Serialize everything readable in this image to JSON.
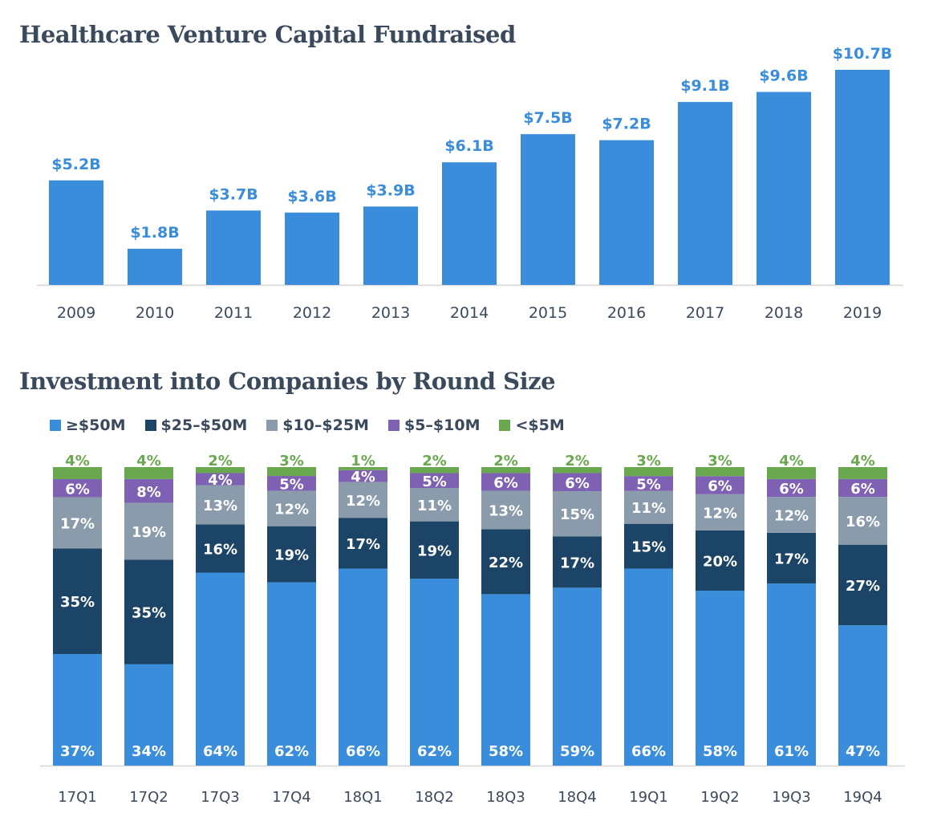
{
  "charts": [
    {
      "title": "Healthcare Venture Capital Fundraised",
      "chart_data": {
        "type": "bar",
        "categories": [
          "2009",
          "2010",
          "2011",
          "2012",
          "2013",
          "2014",
          "2015",
          "2016",
          "2017",
          "2018",
          "2019"
        ],
        "values": [
          5.2,
          1.8,
          3.7,
          3.6,
          3.9,
          6.1,
          7.5,
          7.2,
          9.1,
          9.6,
          10.7
        ],
        "data_labels": [
          "$5.2B",
          "$1.8B",
          "$3.7B",
          "$3.6B",
          "$3.9B",
          "$6.1B",
          "$7.5B",
          "$7.2B",
          "$9.1B",
          "$9.6B",
          "$10.7B"
        ],
        "color": "#3a8dda",
        "ylim": [
          0,
          10.7
        ],
        "grid": false
      }
    },
    {
      "title": "Investment into Companies by Round Size",
      "chart_data": {
        "type": "bar",
        "stacked": true,
        "categories": [
          "17Q1",
          "17Q2",
          "17Q3",
          "17Q4",
          "18Q1",
          "18Q2",
          "18Q3",
          "18Q4",
          "19Q1",
          "19Q2",
          "19Q3",
          "19Q4"
        ],
        "legend_position": "top-left",
        "grid": false,
        "series": [
          {
            "name": "≥$50M",
            "color": "#3a8dda",
            "values": [
              37,
              34,
              64,
              62,
              66,
              62,
              58,
              59,
              66,
              58,
              61,
              47
            ]
          },
          {
            "name": "$25–$50M",
            "color": "#1b4466",
            "values": [
              35,
              35,
              16,
              19,
              17,
              19,
              22,
              17,
              15,
              20,
              17,
              27
            ]
          },
          {
            "name": "$10–$25M",
            "color": "#8a9cac",
            "values": [
              17,
              19,
              13,
              12,
              12,
              11,
              13,
              15,
              11,
              12,
              12,
              16
            ]
          },
          {
            "name": "$5–$10M",
            "color": "#7e61b2",
            "values": [
              6,
              8,
              4,
              5,
              4,
              5,
              6,
              6,
              5,
              6,
              6,
              6
            ]
          },
          {
            "name": "<$5M",
            "color": "#6aa84f",
            "values": [
              4,
              4,
              2,
              3,
              1,
              2,
              2,
              2,
              3,
              3,
              4,
              4
            ]
          }
        ]
      }
    }
  ]
}
